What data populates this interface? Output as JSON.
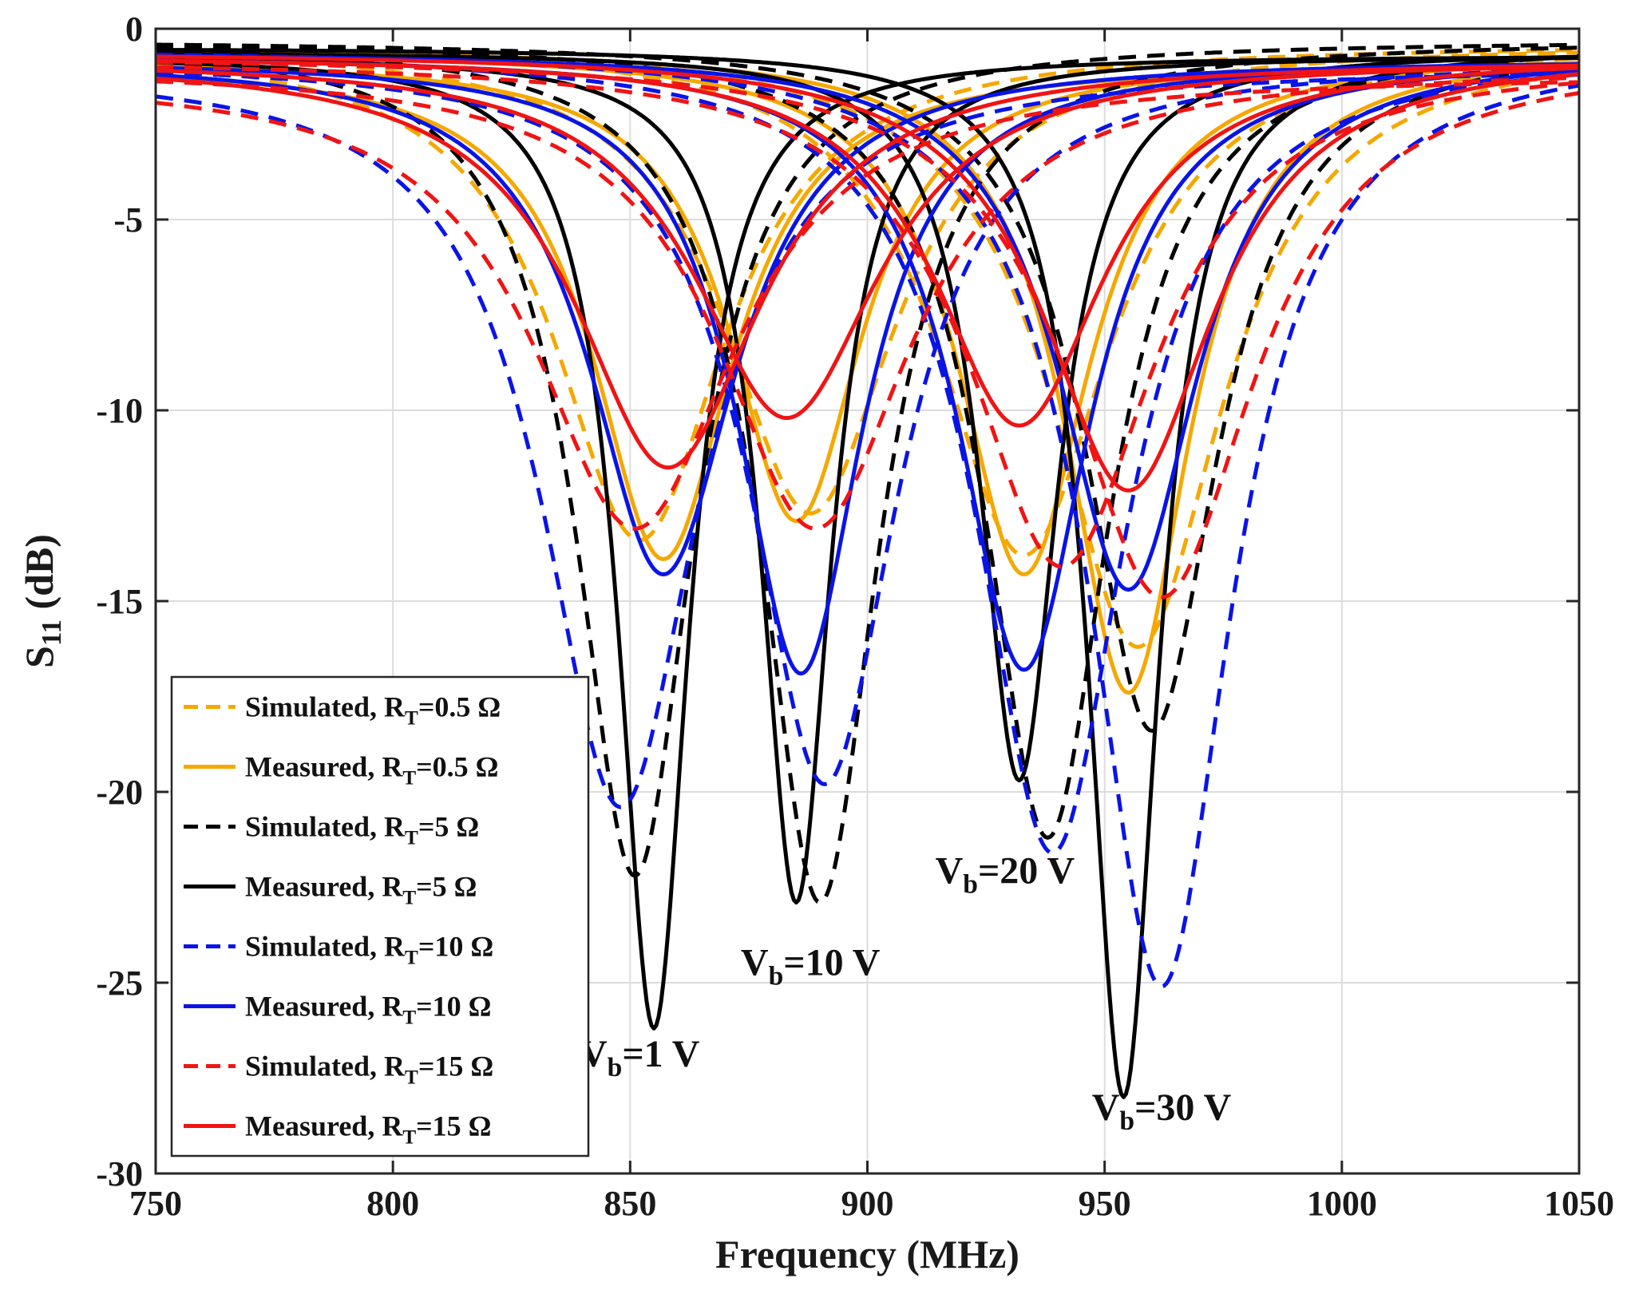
{
  "chart_data": {
    "type": "line",
    "title": "",
    "xlabel": "Frequency (MHz)",
    "ylabel_main": "S",
    "ylabel_sub": "11",
    "ylabel_unit": " (dB)",
    "xlim": [
      750,
      1050
    ],
    "ylim": [
      -30,
      0
    ],
    "xticks": [
      750,
      800,
      850,
      900,
      950,
      1000,
      1050
    ],
    "yticks": [
      -30,
      -25,
      -20,
      -15,
      -10,
      -5,
      0
    ],
    "xtick_labels": [
      "750",
      "800",
      "850",
      "900",
      "950",
      "1000",
      "1050"
    ],
    "ytick_labels": [
      "-30",
      "-25",
      "-20",
      "-15",
      "-10",
      "-5",
      "0"
    ],
    "grid": true,
    "legend_position": "bottom-left",
    "legend": [
      {
        "prefix": "Simulated, R",
        "sub": "T",
        "suffix": "=0.5 Ω",
        "color": "#F5A800",
        "dash": true
      },
      {
        "prefix": "Measured, R",
        "sub": "T",
        "suffix": "=0.5 Ω",
        "color": "#F5A800",
        "dash": false
      },
      {
        "prefix": "Simulated, R",
        "sub": "T",
        "suffix": "=5 Ω",
        "color": "#000000",
        "dash": true
      },
      {
        "prefix": "Measured, R",
        "sub": "T",
        "suffix": "=5 Ω",
        "color": "#000000",
        "dash": false
      },
      {
        "prefix": "Simulated, R",
        "sub": "T",
        "suffix": "=10 Ω",
        "color": "#0A14E6",
        "dash": true
      },
      {
        "prefix": "Measured, R",
        "sub": "T",
        "suffix": "=10 Ω",
        "color": "#0A14E6",
        "dash": false
      },
      {
        "prefix": "Simulated, R",
        "sub": "T",
        "suffix": "=15 Ω",
        "color": "#F01414",
        "dash": true
      },
      {
        "prefix": "Measured, R",
        "sub": "T",
        "suffix": "=15 Ω",
        "color": "#F01414",
        "dash": false
      }
    ],
    "annotations": [
      {
        "main": "V",
        "sub": "b",
        "rest": "=1 V",
        "x": 852,
        "y": -27.2
      },
      {
        "main": "V",
        "sub": "b",
        "rest": "=10 V",
        "x": 888,
        "y": -24.8
      },
      {
        "main": "V",
        "sub": "b",
        "rest": "=20 V",
        "x": 929,
        "y": -22.4
      },
      {
        "main": "V",
        "sub": "b",
        "rest": "=30 V",
        "x": 962,
        "y": -28.6
      }
    ],
    "series": [
      {
        "name": "Simulated, RT=0.5 Ω, Vb=1 V",
        "color": "#F5A800",
        "dash": true,
        "f0": 852,
        "depth": -13.4,
        "bw": 22,
        "base": -0.4
      },
      {
        "name": "Simulated, RT=0.5 Ω, Vb=10 V",
        "color": "#F5A800",
        "dash": true,
        "f0": 888,
        "depth": -12.7,
        "bw": 22,
        "base": -0.4
      },
      {
        "name": "Simulated, RT=0.5 Ω, Vb=20 V",
        "color": "#F5A800",
        "dash": true,
        "f0": 933,
        "depth": -13.8,
        "bw": 22,
        "base": -0.3
      },
      {
        "name": "Simulated, RT=0.5 Ω, Vb=30 V",
        "color": "#F5A800",
        "dash": true,
        "f0": 957,
        "depth": -16.2,
        "bw": 22,
        "base": -0.3
      },
      {
        "name": "Measured, RT=0.5 Ω, Vb=1 V",
        "color": "#F5A800",
        "dash": false,
        "f0": 857,
        "depth": -13.9,
        "bw": 18,
        "base": -0.9
      },
      {
        "name": "Measured, RT=0.5 Ω, Vb=10 V",
        "color": "#F5A800",
        "dash": false,
        "f0": 885,
        "depth": -12.9,
        "bw": 17,
        "base": -0.8
      },
      {
        "name": "Measured, RT=0.5 Ω, Vb=20 V",
        "color": "#F5A800",
        "dash": false,
        "f0": 933,
        "depth": -14.3,
        "bw": 17,
        "base": -0.6
      },
      {
        "name": "Measured, RT=0.5 Ω, Vb=30 V",
        "color": "#F5A800",
        "dash": false,
        "f0": 955,
        "depth": -17.4,
        "bw": 16,
        "base": -0.5
      },
      {
        "name": "Simulated, RT=5 Ω, Vb=1 V",
        "color": "#000000",
        "dash": true,
        "f0": 851,
        "depth": -22.2,
        "bw": 15,
        "base": -0.3
      },
      {
        "name": "Simulated, RT=5 Ω, Vb=10 V",
        "color": "#000000",
        "dash": true,
        "f0": 890,
        "depth": -22.9,
        "bw": 15,
        "base": -0.3
      },
      {
        "name": "Simulated, RT=5 Ω, Vb=20 V",
        "color": "#000000",
        "dash": true,
        "f0": 938,
        "depth": -21.2,
        "bw": 16,
        "base": -0.3
      },
      {
        "name": "Simulated, RT=5 Ω, Vb=30 V",
        "color": "#000000",
        "dash": true,
        "f0": 960,
        "depth": -18.4,
        "bw": 17,
        "base": -0.3
      },
      {
        "name": "Measured, RT=5 Ω, Vb=1 V",
        "color": "#000000",
        "dash": false,
        "f0": 855,
        "depth": -26.2,
        "bw": 9,
        "base": -0.7
      },
      {
        "name": "Measured, RT=5 Ω, Vb=10 V",
        "color": "#000000",
        "dash": false,
        "f0": 885,
        "depth": -22.9,
        "bw": 9,
        "base": -0.7
      },
      {
        "name": "Measured, RT=5 Ω, Vb=20 V",
        "color": "#000000",
        "dash": false,
        "f0": 932,
        "depth": -19.7,
        "bw": 10,
        "base": -0.6
      },
      {
        "name": "Measured, RT=5 Ω, Vb=30 V",
        "color": "#000000",
        "dash": false,
        "f0": 954,
        "depth": -28.0,
        "bw": 9,
        "base": -0.5
      },
      {
        "name": "Simulated, RT=10 Ω, Vb=1 V",
        "color": "#0A14E6",
        "dash": true,
        "f0": 848,
        "depth": -20.4,
        "bw": 20,
        "base": -1.0
      },
      {
        "name": "Simulated, RT=10 Ω, Vb=10 V",
        "color": "#0A14E6",
        "dash": true,
        "f0": 891,
        "depth": -19.8,
        "bw": 19,
        "base": -0.8
      },
      {
        "name": "Simulated, RT=10 Ω, Vb=20 V",
        "color": "#0A14E6",
        "dash": true,
        "f0": 939,
        "depth": -21.6,
        "bw": 19,
        "base": -0.6
      },
      {
        "name": "Simulated, RT=10 Ω, Vb=30 V",
        "color": "#0A14E6",
        "dash": true,
        "f0": 962,
        "depth": -25.1,
        "bw": 18,
        "base": -0.5
      },
      {
        "name": "Measured, RT=10 Ω, Vb=1 V",
        "color": "#0A14E6",
        "dash": false,
        "f0": 857,
        "depth": -14.3,
        "bw": 19,
        "base": -0.8
      },
      {
        "name": "Measured, RT=10 Ω, Vb=10 V",
        "color": "#0A14E6",
        "dash": false,
        "f0": 886,
        "depth": -16.9,
        "bw": 16,
        "base": -0.8
      },
      {
        "name": "Measured, RT=10 Ω, Vb=20 V",
        "color": "#0A14E6",
        "dash": false,
        "f0": 933,
        "depth": -16.8,
        "bw": 17,
        "base": -0.7
      },
      {
        "name": "Measured, RT=10 Ω, Vb=30 V",
        "color": "#0A14E6",
        "dash": false,
        "f0": 955,
        "depth": -14.7,
        "bw": 18,
        "base": -0.6
      },
      {
        "name": "Simulated, RT=15 Ω, Vb=1 V",
        "color": "#F01414",
        "dash": true,
        "f0": 851,
        "depth": -13.1,
        "bw": 26,
        "base": -1.2
      },
      {
        "name": "Simulated, RT=15 Ω, Vb=10 V",
        "color": "#F01414",
        "dash": true,
        "f0": 889,
        "depth": -13.1,
        "bw": 25,
        "base": -1.0
      },
      {
        "name": "Simulated, RT=15 Ω, Vb=20 V",
        "color": "#F01414",
        "dash": true,
        "f0": 941,
        "depth": -14.1,
        "bw": 24,
        "base": -0.8
      },
      {
        "name": "Simulated, RT=15 Ω, Vb=30 V",
        "color": "#F01414",
        "dash": true,
        "f0": 962,
        "depth": -14.9,
        "bw": 24,
        "base": -0.7
      },
      {
        "name": "Measured, RT=15 Ω, Vb=1 V",
        "color": "#F01414",
        "dash": false,
        "f0": 858,
        "depth": -11.5,
        "bw": 24,
        "base": -0.8
      },
      {
        "name": "Measured, RT=15 Ω, Vb=10 V",
        "color": "#F01414",
        "dash": false,
        "f0": 883,
        "depth": -10.2,
        "bw": 24,
        "base": -0.8
      },
      {
        "name": "Measured, RT=15 Ω, Vb=20 V",
        "color": "#F01414",
        "dash": false,
        "f0": 932,
        "depth": -10.4,
        "bw": 22,
        "base": -0.7
      },
      {
        "name": "Measured, RT=15 Ω, Vb=30 V",
        "color": "#F01414",
        "dash": false,
        "f0": 955,
        "depth": -12.1,
        "bw": 22,
        "base": -0.6
      }
    ]
  }
}
